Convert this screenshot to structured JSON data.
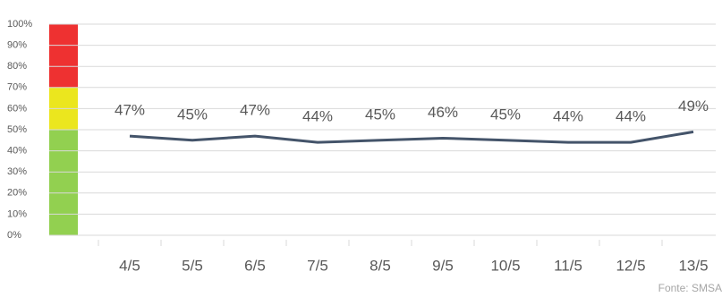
{
  "chart_data": {
    "type": "line",
    "categories": [
      "4/5",
      "5/5",
      "6/5",
      "7/5",
      "8/5",
      "9/5",
      "10/5",
      "11/5",
      "12/5",
      "13/5"
    ],
    "series": [
      {
        "color": "#44546a",
        "values": [
          47,
          45,
          47,
          44,
          45,
          46,
          45,
          44,
          44,
          49
        ],
        "value_labels": [
          "47%",
          "45%",
          "47%",
          "44%",
          "45%",
          "46%",
          "45%",
          "44%",
          "44%",
          "49%"
        ]
      }
    ],
    "ylim": [
      0,
      100
    ],
    "yticks": [
      {
        "value": 0,
        "label": "0%"
      },
      {
        "value": 10,
        "label": "10%"
      },
      {
        "value": 20,
        "label": "20%"
      },
      {
        "value": 30,
        "label": "30%"
      },
      {
        "value": 40,
        "label": "40%"
      },
      {
        "value": 50,
        "label": "50%"
      },
      {
        "value": 60,
        "label": "60%"
      },
      {
        "value": 70,
        "label": "70%"
      },
      {
        "value": 80,
        "label": "80%"
      },
      {
        "value": 90,
        "label": "90%"
      },
      {
        "value": 100,
        "label": "100%"
      }
    ],
    "grid": true,
    "bands": [
      {
        "from": 0,
        "to": 50,
        "color": "#92d050"
      },
      {
        "from": 50,
        "to": 70,
        "color": "#ebe61e"
      },
      {
        "from": 70,
        "to": 100,
        "color": "#ee3131"
      }
    ],
    "source": "Fonte: SMSA"
  }
}
